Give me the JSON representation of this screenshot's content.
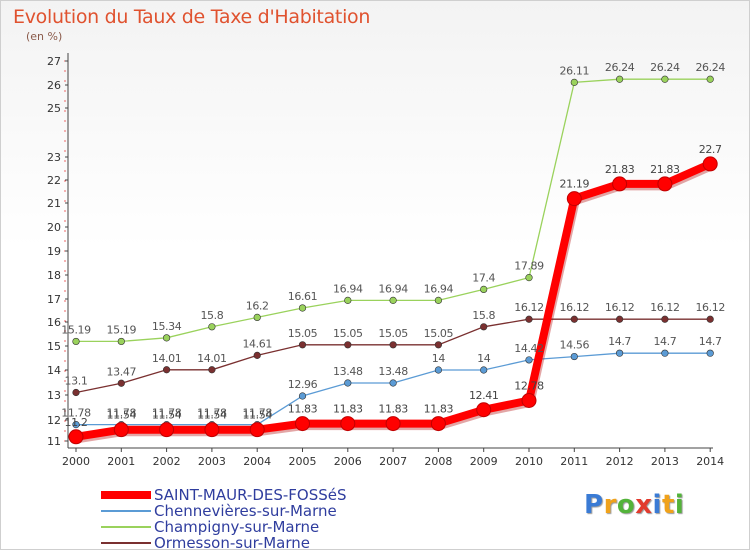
{
  "header": {
    "title": "Evolution du Taux de Taxe d'Habitation",
    "unit": "(en %)"
  },
  "logo": {
    "text": "Proxiti",
    "letters": [
      {
        "ch": "P",
        "color": "#3a7bd5"
      },
      {
        "ch": "r",
        "color": "#f0a21b"
      },
      {
        "ch": "o",
        "color": "#53b33a"
      },
      {
        "ch": "x",
        "color": "#e23b2e"
      },
      {
        "ch": "i",
        "color": "#3a7bd5"
      },
      {
        "ch": "t",
        "color": "#f0a21b"
      },
      {
        "ch": "i",
        "color": "#53b33a"
      }
    ]
  },
  "chart_data": {
    "type": "line",
    "title": "Evolution du Taux de Taxe d'Habitation",
    "xlabel": "",
    "ylabel": "(en %)",
    "x": [
      "2000",
      "2001",
      "2002",
      "2003",
      "2004",
      "2005",
      "2006",
      "2007",
      "2008",
      "2009",
      "2010",
      "2011",
      "2012",
      "2013",
      "2014"
    ],
    "yticks": [
      "11",
      "12",
      "13",
      "14",
      "15",
      "16",
      "17",
      "18",
      "19",
      "20",
      "21",
      "22",
      "23",
      "25",
      "26",
      "27"
    ],
    "grid": false,
    "legend": "bottom-left",
    "series": [
      {
        "name": "SAINT-MAUR-DES-FOSSéS",
        "color": "#ff0000",
        "highlight": true,
        "values": [
          11.2,
          11.54,
          11.54,
          11.54,
          11.54,
          11.83,
          11.83,
          11.83,
          11.83,
          12.41,
          12.78,
          21.19,
          21.83,
          21.83,
          22.7
        ],
        "labels": [
          "11.2",
          "11.54",
          "11.54",
          "11.54",
          "11.54",
          "11.83",
          "11.83",
          "11.83",
          "11.83",
          "12.41",
          "12.78",
          "21.19",
          "21.83",
          "21.83",
          "22.7"
        ]
      },
      {
        "name": "Chennevières-sur-Marne",
        "color": "#5b9bd5",
        "highlight": false,
        "values": [
          11.78,
          11.78,
          11.78,
          11.78,
          11.78,
          12.96,
          13.48,
          13.48,
          14.0,
          14.0,
          14.42,
          14.56,
          14.7,
          14.7,
          14.7
        ],
        "labels": [
          "11.78",
          "11.78",
          "11.78",
          "11.78",
          "11.78",
          "12.96",
          "13.48",
          "13.48",
          "14",
          "14",
          "14.42",
          "14.56",
          "14.7",
          "14.7",
          "14.7"
        ]
      },
      {
        "name": "Champigny-sur-Marne",
        "color": "#9ad25c",
        "highlight": false,
        "values": [
          15.19,
          15.19,
          15.34,
          15.8,
          16.2,
          16.61,
          16.94,
          16.94,
          16.94,
          17.4,
          17.89,
          26.11,
          26.24,
          26.24,
          26.24
        ],
        "labels": [
          "15.19",
          "15.19",
          "15.34",
          "15.8",
          "16.2",
          "16.61",
          "16.94",
          "16.94",
          "16.94",
          "17.4",
          "17.89",
          "26.11",
          "26.24",
          "26.24",
          "26.24"
        ]
      },
      {
        "name": "Ormesson-sur-Marne",
        "color": "#7a3030",
        "highlight": false,
        "values": [
          13.1,
          13.47,
          14.01,
          14.01,
          14.61,
          15.05,
          15.05,
          15.05,
          15.05,
          15.8,
          16.12,
          16.12,
          16.12,
          16.12,
          16.12
        ],
        "labels": [
          "13.1",
          "13.47",
          "14.01",
          "14.01",
          "14.61",
          "15.05",
          "15.05",
          "15.05",
          "15.05",
          "15.8",
          "16.12",
          "16.12",
          "16.12",
          "16.12",
          "16.12"
        ]
      }
    ]
  }
}
